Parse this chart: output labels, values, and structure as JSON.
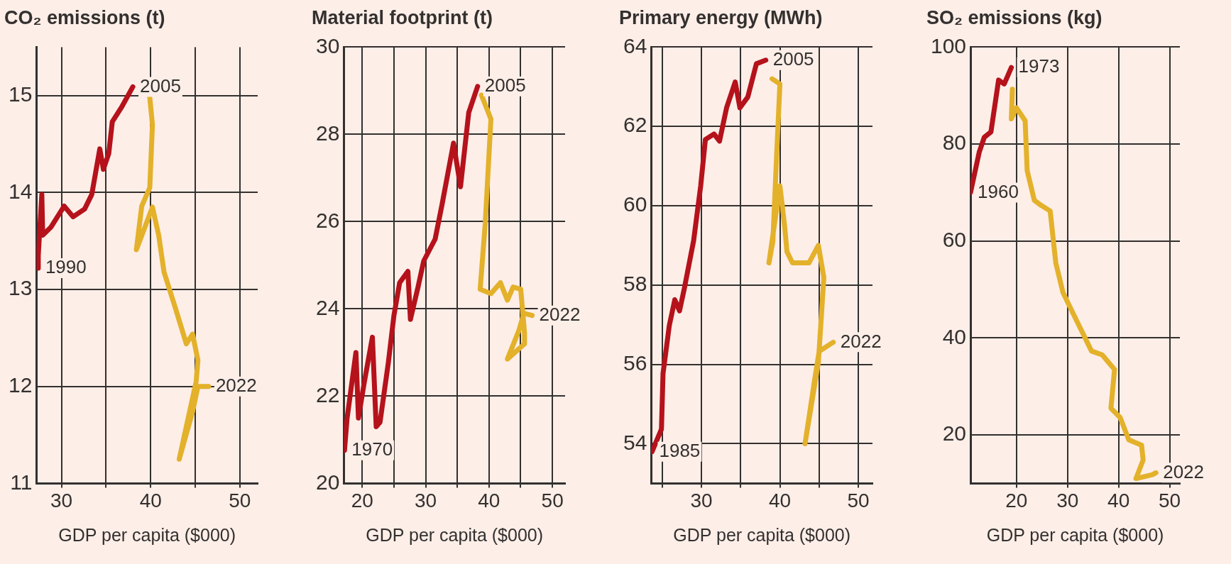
{
  "chart_data": [
    {
      "type": "line",
      "title": "CO₂ emissions (t)",
      "xlabel": "GDP per capita ($000)",
      "xlim": [
        27.2,
        52
      ],
      "ylim": [
        11,
        15.5
      ],
      "xticks": [
        30,
        {
          "value": 35,
          "label": null
        },
        40,
        {
          "value": 45,
          "label": null
        },
        50
      ],
      "yticks": [
        11,
        12,
        13,
        14,
        15
      ],
      "grid": true,
      "marker": "none",
      "line_style": "solid",
      "series": [
        {
          "color": "#b5121b",
          "x": [
            27.4,
            27.4,
            27.8,
            27.9,
            28.8,
            30.3,
            31.3,
            32.6,
            33.4,
            34.3,
            34.7,
            35.3,
            35.7,
            36.8,
            38.0
          ],
          "values": [
            13.22,
            13.35,
            13.98,
            13.56,
            13.64,
            13.86,
            13.75,
            13.83,
            13.98,
            14.45,
            14.24,
            14.4,
            14.73,
            14.89,
            15.09
          ]
        },
        {
          "color": "#e3b12a",
          "x": [
            39.9,
            40.2,
            39.9,
            39.0,
            38.4,
            40.2,
            40.9,
            41.5,
            42.8,
            44.0,
            44.7,
            45.3,
            45.1,
            43.2,
            44.7,
            45.3,
            46.5
          ],
          "values": [
            14.98,
            14.7,
            14.05,
            13.86,
            13.41,
            13.85,
            13.56,
            13.18,
            12.8,
            12.44,
            12.54,
            12.27,
            12.05,
            11.25,
            11.74,
            12.0,
            12.0
          ]
        }
      ],
      "annotations": [
        {
          "text": "1990",
          "x": 27.4,
          "y": 13.22
        },
        {
          "text": "2005",
          "x": 38.0,
          "y": 15.09
        },
        {
          "text": "2022",
          "x": 46.5,
          "y": 12.0
        }
      ]
    },
    {
      "type": "line",
      "title": "Material footprint (t)",
      "xlabel": "GDP per capita ($000)",
      "xlim": [
        17.1,
        52
      ],
      "ylim": [
        20,
        30
      ],
      "xticks": [
        20,
        {
          "value": 25,
          "label": null
        },
        30,
        {
          "value": 35,
          "label": null
        },
        40,
        {
          "value": 45,
          "label": null
        },
        50
      ],
      "yticks": [
        20,
        22,
        24,
        26,
        28,
        30
      ],
      "grid": true,
      "marker": "none",
      "line_style": "solid",
      "series": [
        {
          "color": "#b5121b",
          "x": [
            17.2,
            17.6,
            19.0,
            19.4,
            20.3,
            21.6,
            22.2,
            22.8,
            24.1,
            25.0,
            25.9,
            27.2,
            27.6,
            28.8,
            29.7,
            31.5,
            32.6,
            34.4,
            35.5,
            36.8,
            38.2
          ],
          "values": [
            20.76,
            21.48,
            23.0,
            21.5,
            22.3,
            23.35,
            21.3,
            21.4,
            22.75,
            23.85,
            24.6,
            24.86,
            23.76,
            24.5,
            25.1,
            25.6,
            26.4,
            27.8,
            26.8,
            28.5,
            29.1
          ]
        },
        {
          "color": "#e3b12a",
          "x": [
            38.8,
            40.3,
            39.4,
            38.6,
            40.3,
            41.8,
            42.9,
            43.8,
            45.0,
            45.6,
            45.6,
            42.9,
            44.7,
            45.5,
            46.8
          ],
          "values": [
            28.9,
            28.35,
            25.95,
            24.45,
            24.35,
            24.6,
            24.2,
            24.5,
            24.45,
            23.45,
            23.2,
            22.85,
            23.5,
            23.9,
            23.85
          ]
        }
      ],
      "annotations": [
        {
          "text": "1970",
          "x": 17.2,
          "y": 20.76
        },
        {
          "text": "2005",
          "x": 38.2,
          "y": 29.1
        },
        {
          "text": "2022",
          "x": 46.8,
          "y": 23.85
        }
      ]
    },
    {
      "type": "line",
      "title": "Primary energy (MWh)",
      "xlabel": "GDP per capita ($000)",
      "xlim": [
        23.6,
        51.8
      ],
      "ylim": [
        53,
        64
      ],
      "xticks": [
        {
          "value": 25,
          "label": null
        },
        30,
        {
          "value": 35,
          "label": null
        },
        40,
        {
          "value": 45,
          "label": null
        },
        50
      ],
      "yticks": [
        54,
        56,
        58,
        60,
        62,
        64
      ],
      "grid": true,
      "marker": "none",
      "line_style": "solid",
      "series": [
        {
          "color": "#b5121b",
          "x": [
            23.7,
            24.9,
            25.1,
            25.9,
            26.6,
            27.2,
            27.8,
            29.0,
            29.9,
            30.5,
            31.6,
            32.3,
            33.2,
            34.3,
            34.9,
            35.9,
            37.0,
            38.2
          ],
          "values": [
            53.8,
            54.37,
            55.77,
            56.98,
            57.63,
            57.35,
            57.9,
            59.12,
            60.5,
            61.67,
            61.81,
            61.63,
            62.47,
            63.12,
            62.47,
            62.74,
            63.58,
            63.67
          ]
        },
        {
          "color": "#e3b12a",
          "x": [
            39.0,
            40.0,
            39.6,
            39.1,
            38.6,
            40.0,
            40.6,
            40.9,
            41.6,
            43.7,
            44.9,
            45.6,
            44.9,
            43.2,
            44.4,
            45.0,
            46.8
          ],
          "values": [
            63.2,
            63.07,
            61.35,
            59.1,
            58.56,
            60.5,
            59.49,
            58.84,
            58.56,
            58.56,
            59.0,
            58.19,
            56.05,
            54.0,
            55.58,
            56.33,
            56.56
          ]
        }
      ],
      "annotations": [
        {
          "text": "1985",
          "x": 23.7,
          "y": 53.8
        },
        {
          "text": "2005",
          "x": 38.2,
          "y": 63.67
        },
        {
          "text": "2022",
          "x": 46.8,
          "y": 56.56
        }
      ]
    },
    {
      "type": "line",
      "title": "SO₂ emissions (kg)",
      "xlabel": "GDP per capita ($000)",
      "xlim": [
        11,
        52
      ],
      "ylim": [
        10,
        100
      ],
      "xticks": [
        20,
        30,
        40,
        50
      ],
      "yticks": [
        20,
        40,
        60,
        80,
        100
      ],
      "grid": true,
      "marker": "none",
      "line_style": "solid",
      "series": [
        {
          "color": "#b5121b",
          "x": [
            11.0,
            12.7,
            13.7,
            15.0,
            16.5,
            17.6,
            19.0
          ],
          "values": [
            70.0,
            78.3,
            81.4,
            82.5,
            93.2,
            92.4,
            95.8
          ]
        },
        {
          "color": "#e3b12a",
          "x": [
            19.2,
            19.0,
            20.0,
            21.7,
            22.1,
            23.5,
            24.9,
            26.6,
            27.7,
            29.1,
            31.9,
            34.7,
            36.8,
            39.2,
            38.5,
            40.3,
            42.0,
            44.5,
            44.8,
            43.4,
            46.6,
            47.3
          ],
          "values": [
            91.3,
            85.2,
            87.5,
            84.8,
            74.5,
            68.4,
            67.3,
            66.2,
            55.5,
            49.4,
            43.3,
            37.3,
            36.5,
            33.5,
            25.5,
            23.6,
            19.0,
            17.9,
            14.8,
            11.0,
            11.8,
            12.2
          ]
        }
      ],
      "annotations": [
        {
          "text": "1960",
          "x": 11.0,
          "y": 70.0
        },
        {
          "text": "1973",
          "x": 19.0,
          "y": 95.8
        },
        {
          "text": "2022",
          "x": 47.3,
          "y": 12.2
        }
      ]
    }
  ]
}
